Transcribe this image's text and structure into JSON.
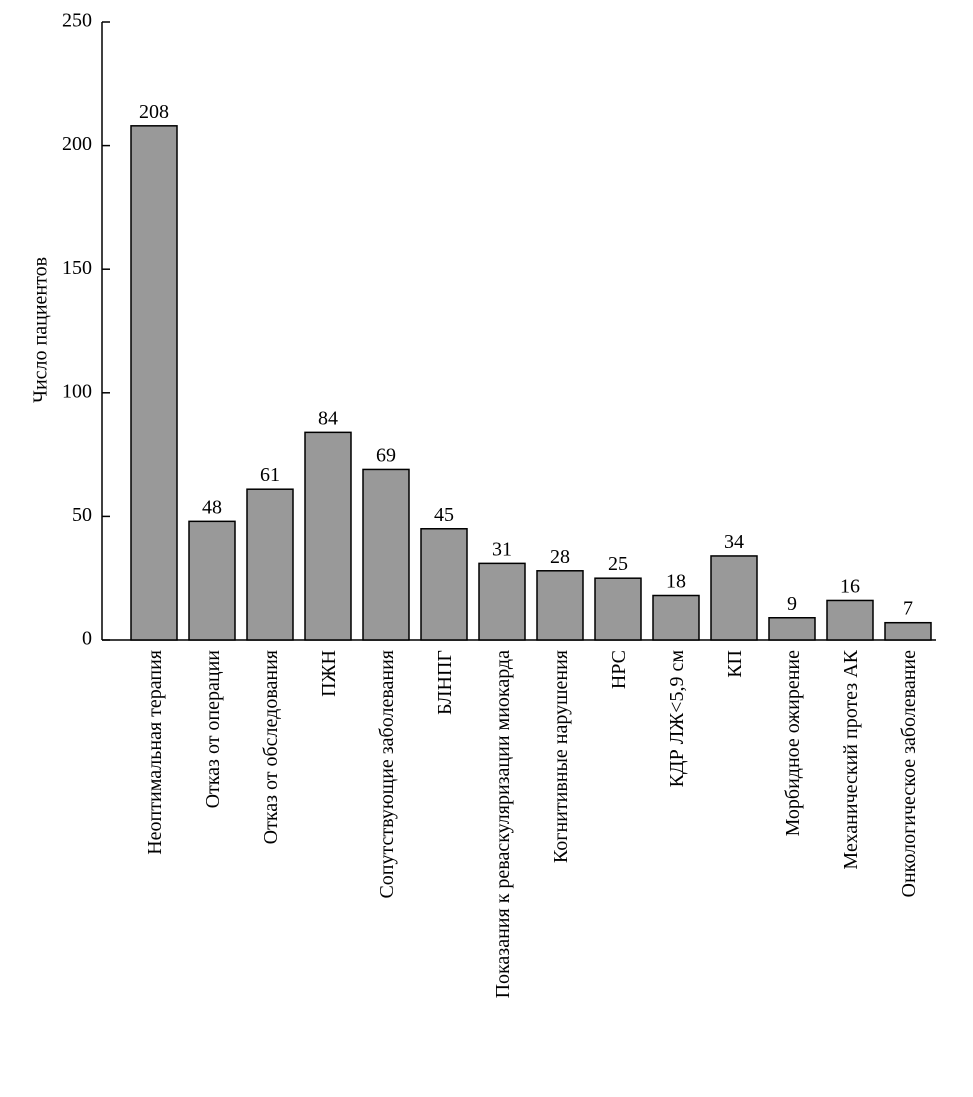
{
  "chart_data": {
    "type": "bar",
    "y_label": "Число пациентов",
    "categories": [
      "Неоптимальная терапия",
      "Отказ от операции",
      "Отказ от обследования",
      "ПЖН",
      "Сопутствующие заболевания",
      "БЛНПГ",
      "Показания к реваскуляризации миокарда",
      "Когнитивные нарушения",
      "НРС",
      "КДР ЛЖ<5,9 см",
      "КП",
      "Морбидное ожирение",
      "Механический протез АК",
      "Онкологическое заболевание"
    ],
    "values": [
      208,
      48,
      61,
      84,
      69,
      45,
      31,
      28,
      25,
      18,
      34,
      9,
      16,
      7
    ],
    "color": "#999999",
    "ylim": [
      0,
      250
    ],
    "yticks": [
      0,
      50,
      100,
      150,
      200,
      250
    ],
    "grid": false
  }
}
